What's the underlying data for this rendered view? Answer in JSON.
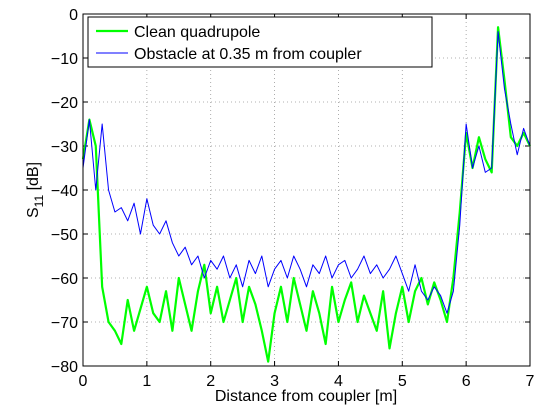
{
  "chart_data": {
    "type": "line",
    "xlabel": "Distance from coupler [m]",
    "ylabel": [
      "S",
      "11",
      " [dB]"
    ],
    "x": [
      0,
      0.1,
      0.2,
      0.3,
      0.4,
      0.5,
      0.6,
      0.7,
      0.8,
      0.9,
      1.0,
      1.1,
      1.2,
      1.3,
      1.4,
      1.5,
      1.6,
      1.7,
      1.8,
      1.9,
      2.0,
      2.1,
      2.2,
      2.3,
      2.4,
      2.5,
      2.6,
      2.7,
      2.8,
      2.9,
      3.0,
      3.1,
      3.2,
      3.3,
      3.4,
      3.5,
      3.6,
      3.7,
      3.8,
      3.9,
      4.0,
      4.1,
      4.2,
      4.3,
      4.4,
      4.5,
      4.6,
      4.7,
      4.8,
      4.9,
      5.0,
      5.1,
      5.2,
      5.3,
      5.4,
      5.5,
      5.6,
      5.7,
      5.8,
      5.9,
      6.0,
      6.1,
      6.2,
      6.3,
      6.4,
      6.5,
      6.6,
      6.7,
      6.8,
      6.9,
      7.0
    ],
    "series": [
      {
        "name": "Clean quadrupole",
        "color": "#00ff00",
        "values": [
          -33,
          -24,
          -30,
          -62,
          -70,
          -72,
          -75,
          -65,
          -72,
          -67,
          -62,
          -68,
          -70,
          -63,
          -72,
          -60,
          -66,
          -72,
          -63,
          -57,
          -68,
          -62,
          -70,
          -65,
          -60,
          -70,
          -62,
          -66,
          -72,
          -79,
          -68,
          -62,
          -70,
          -60,
          -66,
          -72,
          -63,
          -68,
          -75,
          -62,
          -70,
          -65,
          -61,
          -70,
          -64,
          -68,
          -72,
          -63,
          -76,
          -68,
          -62,
          -70,
          -63,
          -60,
          -66,
          -61,
          -65,
          -70,
          -60,
          -45,
          -27,
          -35,
          -28,
          -33,
          -36,
          -3,
          -15,
          -28,
          -30,
          -27,
          -30
        ]
      },
      {
        "name": "Obstacle at 0.35 m from coupler",
        "color": "#0000ff",
        "values": [
          -35,
          -24,
          -40,
          -25,
          -40,
          -45,
          -44,
          -47,
          -43,
          -50,
          -42,
          -48,
          -50,
          -47,
          -52,
          -55,
          -53,
          -57,
          -55,
          -60,
          -56,
          -58,
          -55,
          -60,
          -57,
          -62,
          -56,
          -59,
          -55,
          -62,
          -58,
          -56,
          -60,
          -55,
          -58,
          -62,
          -57,
          -59,
          -55,
          -60,
          -57,
          -56,
          -60,
          -58,
          -55,
          -59,
          -57,
          -60,
          -58,
          -55,
          -59,
          -63,
          -57,
          -63,
          -65,
          -62,
          -64,
          -68,
          -63,
          -48,
          -25,
          -35,
          -30,
          -36,
          -35,
          -4,
          -17,
          -25,
          -32,
          -26,
          -30
        ]
      }
    ],
    "xlim": [
      0,
      7
    ],
    "xticks": [
      0,
      1,
      2,
      3,
      4,
      5,
      6,
      7
    ],
    "ylim": [
      -80,
      0
    ],
    "yticks": [
      {
        "value": -80,
        "label": "−80"
      },
      {
        "value": -70,
        "label": "−70"
      },
      {
        "value": -60,
        "label": "−60"
      },
      {
        "value": -50,
        "label": "−50"
      },
      {
        "value": -40,
        "label": "−40"
      },
      {
        "value": -30,
        "label": "−30"
      },
      {
        "value": -20,
        "label": "−20"
      },
      {
        "value": -10,
        "label": "−10"
      },
      0
    ],
    "grid": true,
    "legend": "upper left"
  }
}
